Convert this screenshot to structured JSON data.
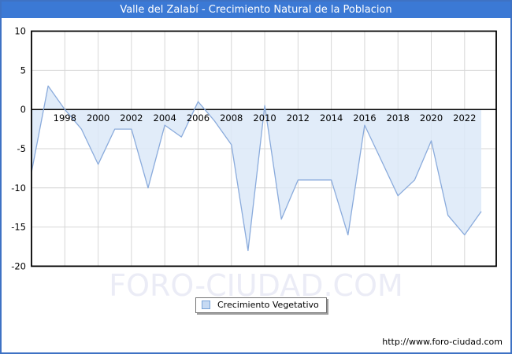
{
  "window": {
    "title": "Valle del Zalabí - Crecimiento Natural de la Poblacion"
  },
  "chart_data": {
    "type": "area",
    "title": "Valle del Zalabí - Crecimiento Natural de la Poblacion",
    "x": [
      1996,
      1997,
      1998,
      1999,
      2000,
      2001,
      2002,
      2003,
      2004,
      2005,
      2006,
      2007,
      2008,
      2009,
      2010,
      2011,
      2012,
      2013,
      2014,
      2015,
      2016,
      2017,
      2018,
      2019,
      2020,
      2021,
      2022,
      2023
    ],
    "series": [
      {
        "name": "Crecimiento Vegetativo",
        "values": [
          -8,
          3,
          0,
          -2.5,
          -7,
          -2.5,
          -2.5,
          -10,
          -2,
          -3.5,
          1,
          -1.5,
          -4.5,
          -18,
          0.5,
          -14,
          -9,
          -9,
          -9,
          -16,
          -2,
          -6.5,
          -11,
          -9,
          -4,
          -13.5,
          -16,
          -13
        ]
      }
    ],
    "baseline": 0,
    "ylim": [
      -20,
      10
    ],
    "xlabel": "",
    "ylabel": "",
    "y_ticks": [
      10,
      5,
      0,
      -5,
      -10,
      -15,
      -20
    ],
    "x_tick_labels": [
      1998,
      2000,
      2002,
      2004,
      2006,
      2008,
      2010,
      2012,
      2014,
      2016,
      2018,
      2020,
      2022
    ],
    "grid": true,
    "legend_position": "bottom-center",
    "colors": {
      "titlebar": "#3b79d5",
      "frame_border": "#3e72c4",
      "grid": "#d6d6d6",
      "axis": "#000000",
      "area_fill": "#dce9f8",
      "area_line": "#8aabdc",
      "legend_swatch_fill": "#c6daf3",
      "legend_swatch_border": "#79a4d8",
      "watermark": "#ebecf6"
    }
  },
  "legend": {
    "label": "Crecimiento Vegetativo"
  },
  "watermark": {
    "text": "FORO-CIUDAD.COM"
  },
  "footer": {
    "url": "http://www.foro-ciudad.com"
  }
}
